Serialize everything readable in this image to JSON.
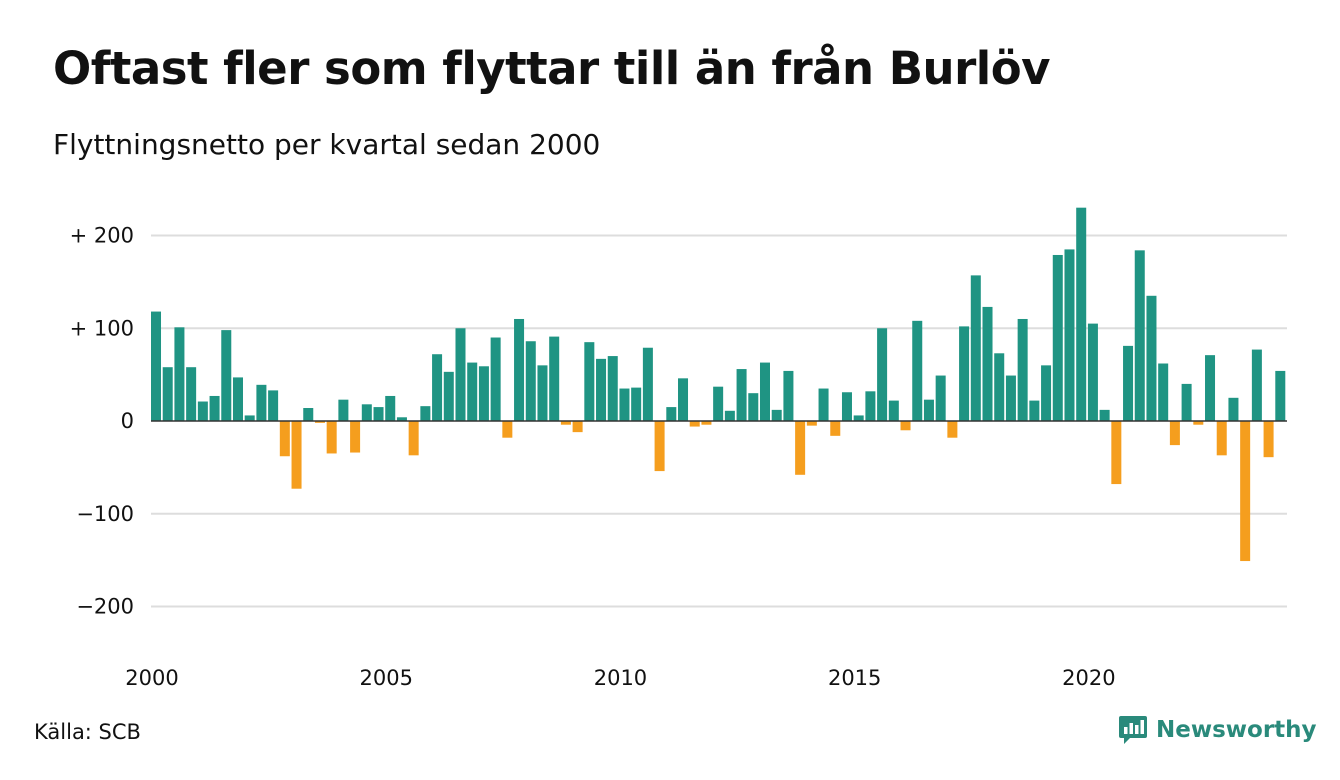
{
  "title": "Oftast fler som flyttar till än från Burlöv",
  "subtitle": "Flyttningsnetto per kvartal sedan 2000",
  "source": "Källa: SCB",
  "brand": "Newsworthy",
  "colors": {
    "positive": "#1f9483",
    "negative": "#f59e1e",
    "grid": "#dddddd",
    "brand": "#2a8a7b"
  },
  "chart_data": {
    "type": "bar",
    "title": "Oftast fler som flyttar till än från Burlöv",
    "subtitle": "Flyttningsnetto per kvartal sedan 2000",
    "xlabel": "",
    "ylabel": "",
    "ylim": [
      -200,
      230
    ],
    "y_ticks": [
      {
        "value": 200,
        "label": "+ 200"
      },
      {
        "value": 100,
        "label": "+ 100"
      },
      {
        "value": 0,
        "label": "0"
      },
      {
        "value": -100,
        "label": "−100"
      },
      {
        "value": -200,
        "label": "−200"
      }
    ],
    "x_ticks": [
      "2000",
      "2005",
      "2010",
      "2015",
      "2020"
    ],
    "grid": true,
    "start_year": 2000,
    "values": [
      118,
      58,
      101,
      58,
      21,
      27,
      98,
      47,
      6,
      39,
      33,
      -38,
      -73,
      14,
      -2,
      -35,
      23,
      -34,
      18,
      15,
      27,
      4,
      -37,
      16,
      72,
      53,
      100,
      63,
      59,
      90,
      -18,
      110,
      86,
      60,
      91,
      -4,
      -12,
      85,
      67,
      70,
      35,
      36,
      79,
      -54,
      15,
      46,
      -6,
      -4,
      37,
      11,
      56,
      30,
      63,
      12,
      54,
      -58,
      -5,
      35,
      -16,
      31,
      6,
      32,
      100,
      22,
      -10,
      108,
      23,
      49,
      -18,
      102,
      157,
      123,
      73,
      49,
      110,
      22,
      60,
      179,
      185,
      230,
      105,
      12,
      -68,
      81,
      184,
      135,
      62,
      -26,
      40,
      -4,
      71,
      -37,
      25,
      -151,
      77,
      -39,
      54
    ]
  }
}
